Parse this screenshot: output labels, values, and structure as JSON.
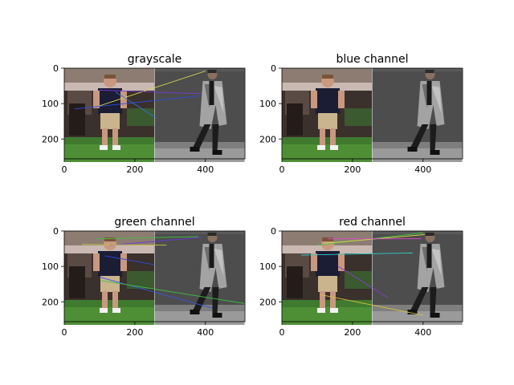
{
  "chart_data": [
    {
      "type": "image",
      "title": "grayscale",
      "xlim": [
        0,
        512
      ],
      "ylim": [
        256,
        0
      ],
      "xticks": [
        "0",
        "200",
        "400"
      ],
      "yticks": [
        "0",
        "100",
        "200"
      ],
      "panels": [
        "person-left",
        "person-right"
      ],
      "match_lines": [
        {
          "x1": 95,
          "y1": 108,
          "x2": 400,
          "y2": 8,
          "color": "#d8d84a"
        },
        {
          "x1": 30,
          "y1": 115,
          "x2": 385,
          "y2": 78,
          "color": "#2f4bd9"
        },
        {
          "x1": 100,
          "y1": 62,
          "x2": 390,
          "y2": 72,
          "color": "#7a3ad6"
        },
        {
          "x1": 145,
          "y1": 67,
          "x2": 260,
          "y2": 140,
          "color": "#2a7ad0"
        }
      ]
    },
    {
      "type": "image",
      "title": "blue channel",
      "xlim": [
        0,
        512
      ],
      "ylim": [
        256,
        0
      ],
      "xticks": [
        "0",
        "200",
        "400"
      ],
      "yticks": [
        "0",
        "100",
        "200"
      ],
      "panels": [
        "person-left",
        "person-right"
      ],
      "match_lines": []
    },
    {
      "type": "image",
      "title": "green channel",
      "xlim": [
        0,
        512
      ],
      "ylim": [
        256,
        0
      ],
      "xticks": [
        "0",
        "200",
        "400"
      ],
      "yticks": [
        "0",
        "100",
        "200"
      ],
      "panels": [
        "person-left",
        "person-right"
      ],
      "match_lines": [
        {
          "x1": 92,
          "y1": 22,
          "x2": 380,
          "y2": 16,
          "color": "#3fc43f"
        },
        {
          "x1": 130,
          "y1": 40,
          "x2": 390,
          "y2": 18,
          "color": "#6a3ad6"
        },
        {
          "x1": 115,
          "y1": 70,
          "x2": 255,
          "y2": 95,
          "color": "#2f4bd9"
        },
        {
          "x1": 100,
          "y1": 130,
          "x2": 420,
          "y2": 218,
          "color": "#3a55dd"
        },
        {
          "x1": 105,
          "y1": 140,
          "x2": 512,
          "y2": 205,
          "color": "#3fc43f"
        },
        {
          "x1": 50,
          "y1": 38,
          "x2": 290,
          "y2": 40,
          "color": "#c8c84a"
        }
      ]
    },
    {
      "type": "image",
      "title": "red channel",
      "xlim": [
        0,
        512
      ],
      "ylim": [
        256,
        0
      ],
      "xticks": [
        "0",
        "200",
        "400"
      ],
      "yticks": [
        "0",
        "100",
        "200"
      ],
      "panels": [
        "person-left",
        "person-right"
      ],
      "match_lines": [
        {
          "x1": 100,
          "y1": 40,
          "x2": 400,
          "y2": 5,
          "color": "#3fc43f"
        },
        {
          "x1": 120,
          "y1": 35,
          "x2": 405,
          "y2": 10,
          "color": "#d8d84a"
        },
        {
          "x1": 55,
          "y1": 68,
          "x2": 370,
          "y2": 62,
          "color": "#2acfcf"
        },
        {
          "x1": 110,
          "y1": 180,
          "x2": 400,
          "y2": 238,
          "color": "#d8c040"
        },
        {
          "x1": 160,
          "y1": 100,
          "x2": 300,
          "y2": 188,
          "color": "#8a3ad6"
        },
        {
          "x1": 130,
          "y1": 22,
          "x2": 395,
          "y2": 22,
          "color": "#e04ad0"
        }
      ]
    }
  ]
}
